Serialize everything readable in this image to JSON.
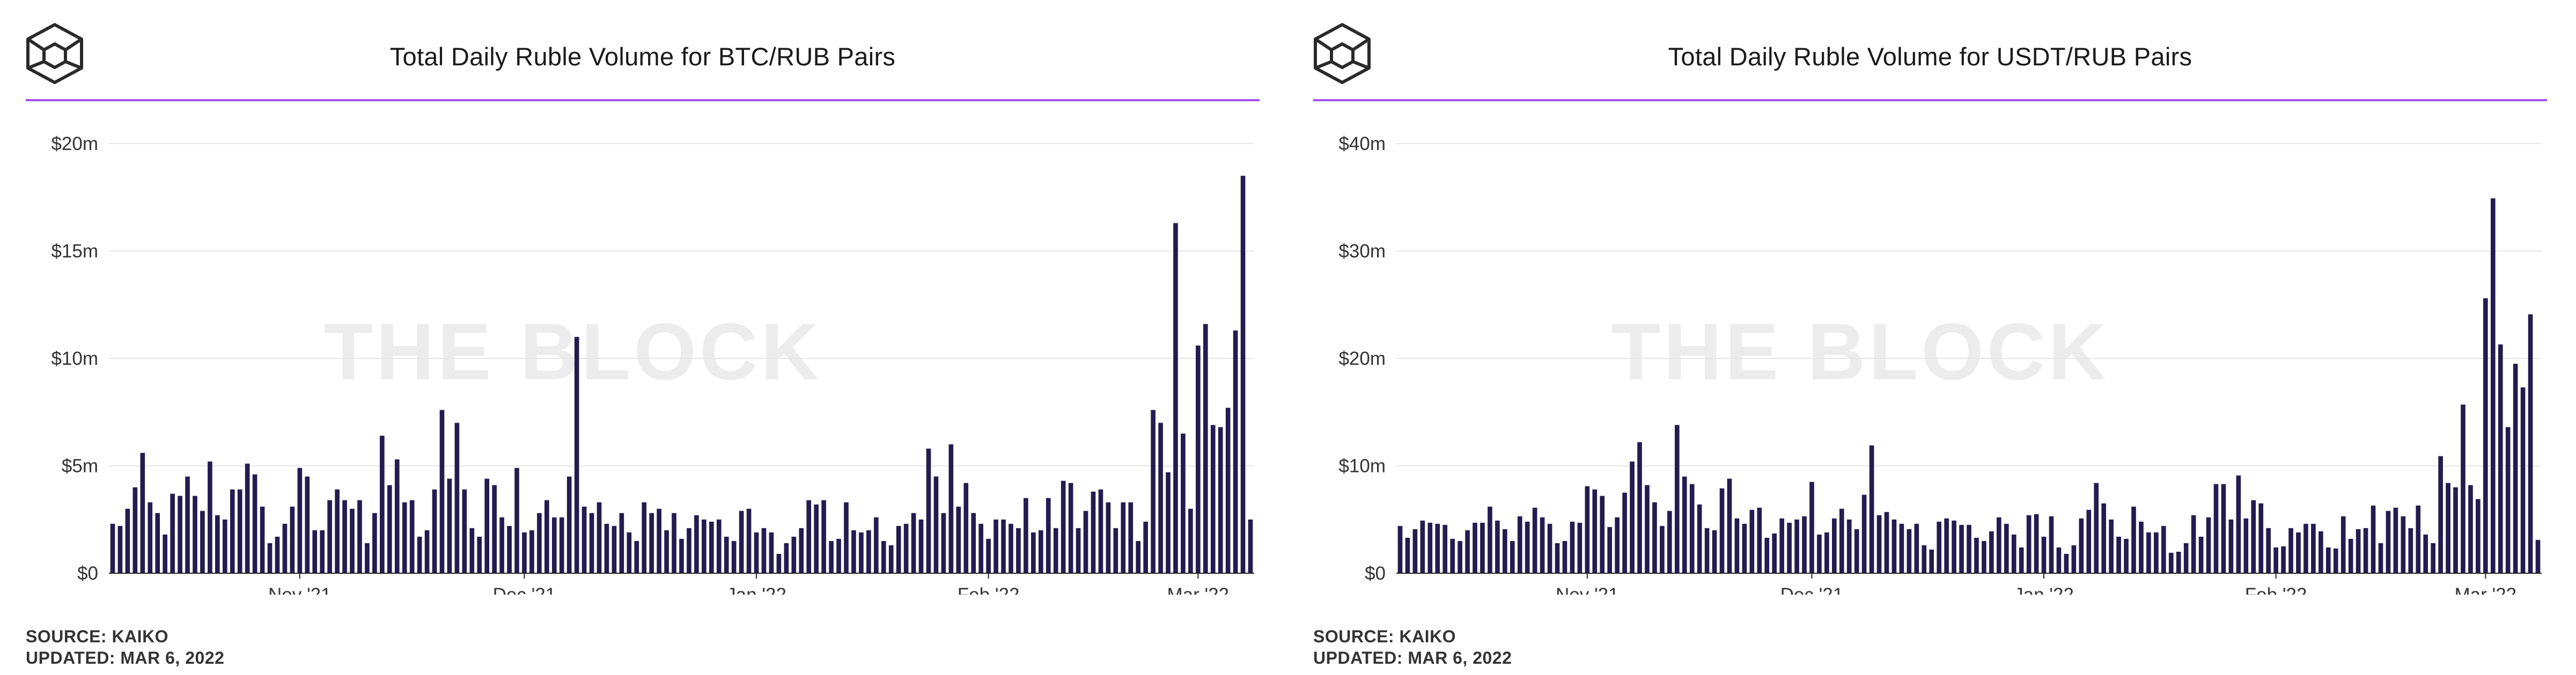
{
  "brand": {
    "accent_color": "#a24ef0",
    "bar_color": "#241c50",
    "logo_icon": "the-block-cube-icon",
    "watermark": "THE BLOCK"
  },
  "charts": [
    {
      "title": "Total Daily Ruble Volume for BTC/RUB Pairs",
      "source": "SOURCE: KAIKO",
      "updated": "UPDATED: MAR 6, 2022"
    },
    {
      "title": "Total Daily Ruble Volume for USDT/RUB Pairs",
      "source": "SOURCE: KAIKO",
      "updated": "UPDATED: MAR 6, 2022"
    }
  ],
  "chart_data": [
    {
      "type": "bar",
      "title": "Total Daily Ruble Volume for BTC/RUB Pairs",
      "xlabel": "",
      "ylabel": "",
      "unit": "$m",
      "ylim": [
        0,
        20
      ],
      "yticks": [
        0,
        5,
        10,
        15,
        20
      ],
      "ytick_labels": [
        "$0",
        "$5m",
        "$10m",
        "$15m",
        "$20m"
      ],
      "x_start_date": "Oct 7, 2021",
      "x_end_date": "Mar 6, 2022",
      "xticks": [
        {
          "label": "Nov '21",
          "index": 25
        },
        {
          "label": "Dec '21",
          "index": 55
        },
        {
          "label": "Jan '22",
          "index": 86
        },
        {
          "label": "Feb '22",
          "index": 117
        },
        {
          "label": "Mar '22",
          "index": 145
        }
      ],
      "grid": true,
      "values": [
        2.3,
        2.2,
        3.0,
        4.0,
        5.6,
        3.3,
        2.8,
        1.8,
        3.7,
        3.6,
        4.5,
        3.6,
        2.9,
        5.2,
        2.7,
        2.5,
        3.9,
        3.9,
        5.1,
        4.6,
        3.1,
        1.4,
        1.7,
        2.3,
        3.1,
        4.9,
        4.5,
        2.0,
        2.0,
        3.4,
        3.9,
        3.4,
        3.0,
        3.4,
        1.4,
        2.8,
        6.4,
        4.1,
        5.3,
        3.3,
        3.4,
        1.7,
        2.0,
        3.9,
        7.6,
        4.4,
        7.0,
        3.9,
        2.1,
        1.7,
        4.4,
        4.1,
        2.6,
        2.2,
        4.9,
        1.9,
        2.0,
        2.8,
        3.4,
        2.6,
        2.6,
        4.5,
        11.0,
        3.1,
        2.8,
        3.3,
        2.3,
        2.2,
        2.8,
        1.9,
        1.5,
        3.3,
        2.8,
        3.0,
        2.0,
        2.8,
        1.6,
        2.1,
        2.7,
        2.5,
        2.4,
        2.5,
        1.7,
        1.5,
        2.9,
        3.0,
        1.9,
        2.1,
        1.9,
        0.9,
        1.4,
        1.7,
        2.1,
        3.4,
        3.2,
        3.4,
        1.5,
        1.6,
        3.3,
        2.0,
        1.9,
        2.0,
        2.6,
        1.5,
        1.3,
        2.2,
        2.3,
        2.8,
        2.5,
        5.8,
        4.5,
        2.8,
        6.0,
        3.1,
        4.2,
        2.8,
        2.3,
        1.6,
        2.5,
        2.5,
        2.3,
        2.1,
        3.5,
        1.9,
        2.0,
        3.5,
        2.1,
        4.3,
        4.2,
        2.1,
        2.9,
        3.8,
        3.9,
        3.3,
        2.1,
        3.3,
        3.3,
        1.5,
        2.4,
        7.6,
        7.0,
        4.7,
        16.3,
        6.5,
        3.0,
        10.6,
        11.6,
        6.9,
        6.8,
        7.7,
        11.3,
        18.5,
        2.5
      ]
    },
    {
      "type": "bar",
      "title": "Total Daily Ruble Volume for USDT/RUB Pairs",
      "xlabel": "",
      "ylabel": "",
      "unit": "$m",
      "ylim": [
        0,
        40
      ],
      "yticks": [
        0,
        10,
        20,
        30,
        40
      ],
      "ytick_labels": [
        "$0",
        "$10m",
        "$20m",
        "$30m",
        "$40m"
      ],
      "x_start_date": "Oct 7, 2021",
      "x_end_date": "Mar 6, 2022",
      "xticks": [
        {
          "label": "Nov '21",
          "index": 25
        },
        {
          "label": "Dec '21",
          "index": 55
        },
        {
          "label": "Jan '22",
          "index": 86
        },
        {
          "label": "Feb '22",
          "index": 117
        },
        {
          "label": "Mar '22",
          "index": 145
        }
      ],
      "grid": true,
      "values": [
        4.4,
        3.3,
        4.1,
        4.9,
        4.7,
        4.6,
        4.5,
        3.2,
        3.0,
        4.0,
        4.7,
        4.7,
        6.2,
        4.9,
        4.1,
        3.0,
        5.3,
        4.8,
        6.1,
        5.2,
        4.6,
        2.8,
        3.0,
        4.8,
        4.7,
        8.1,
        7.8,
        7.2,
        4.3,
        5.2,
        7.5,
        10.4,
        12.2,
        8.2,
        6.6,
        4.4,
        5.8,
        13.8,
        9.0,
        8.3,
        6.4,
        4.2,
        4.0,
        7.9,
        8.8,
        5.1,
        4.6,
        5.9,
        6.1,
        3.3,
        3.7,
        5.1,
        4.7,
        5.0,
        5.3,
        8.5,
        3.6,
        3.8,
        5.1,
        6.0,
        5.0,
        4.1,
        7.3,
        11.9,
        5.4,
        5.7,
        5.0,
        4.6,
        4.1,
        4.6,
        2.6,
        2.2,
        4.8,
        5.1,
        4.9,
        4.5,
        4.5,
        3.3,
        3.0,
        3.9,
        5.2,
        4.6,
        3.6,
        2.4,
        5.4,
        5.5,
        3.4,
        5.3,
        2.4,
        1.8,
        2.6,
        5.1,
        5.9,
        8.4,
        6.5,
        5.0,
        3.4,
        3.2,
        6.2,
        4.8,
        3.8,
        3.8,
        4.4,
        1.9,
        2.0,
        2.8,
        5.4,
        3.4,
        5.2,
        8.3,
        8.3,
        5.0,
        9.1,
        5.1,
        6.8,
        6.5,
        4.2,
        2.4,
        2.5,
        4.2,
        3.8,
        4.6,
        4.6,
        3.9,
        2.4,
        2.3,
        5.3,
        3.2,
        4.1,
        4.2,
        6.3,
        2.8,
        5.8,
        6.1,
        5.3,
        4.2,
        6.3,
        3.6,
        2.8,
        10.9,
        8.4,
        8.0,
        15.7,
        8.2,
        6.9,
        25.6,
        34.9,
        21.3,
        13.6,
        19.5,
        17.3,
        24.1,
        3.1
      ]
    }
  ]
}
